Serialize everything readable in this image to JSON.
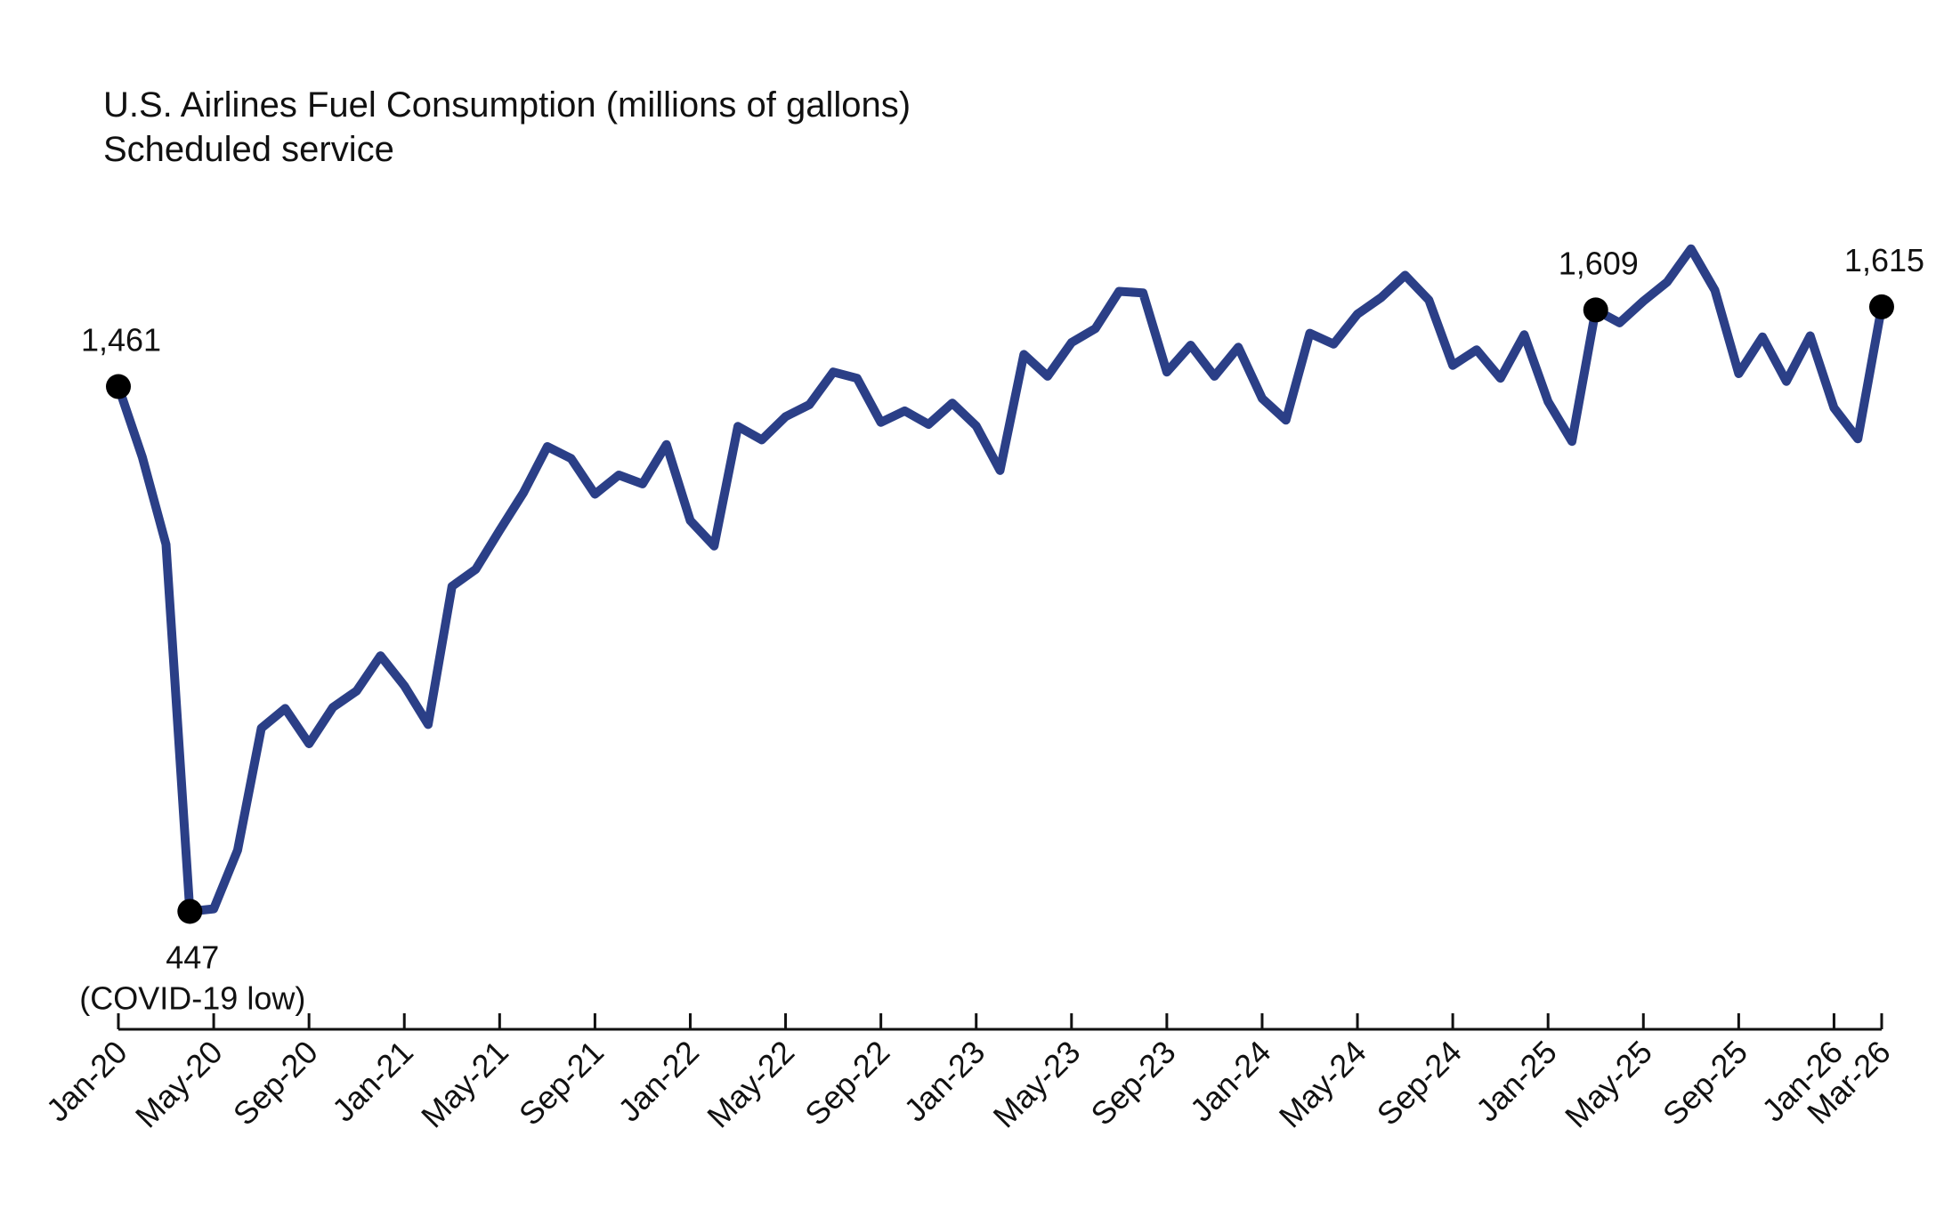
{
  "chart_data": {
    "type": "line",
    "title": "U.S. Airlines Fuel Consumption (millions of gallons)",
    "subtitle": "Scheduled service",
    "xlabel": "",
    "ylabel": "",
    "grid": false,
    "y_axis_visible": false,
    "ylim": [
      300,
      1950
    ],
    "line_color": "#2b3f87",
    "marker_color": "#000000",
    "x_ticks": [
      "Jan-20",
      "May-20",
      "Sep-20",
      "Jan-21",
      "May-21",
      "Sep-21",
      "Jan-22",
      "May-22",
      "Sep-22",
      "Jan-23",
      "May-23",
      "Sep-23",
      "Jan-24",
      "May-24",
      "Sep-24",
      "Jan-25",
      "May-25",
      "Sep-25",
      "Jan-26",
      "Mar-26"
    ],
    "x": [
      "Jan-20",
      "Feb-20",
      "Mar-20",
      "Apr-20",
      "May-20",
      "Jun-20",
      "Jul-20",
      "Aug-20",
      "Sep-20",
      "Oct-20",
      "Nov-20",
      "Dec-20",
      "Jan-21",
      "Feb-21",
      "Mar-21",
      "Apr-21",
      "May-21",
      "Jun-21",
      "Jul-21",
      "Aug-21",
      "Sep-21",
      "Oct-21",
      "Nov-21",
      "Dec-21",
      "Jan-22",
      "Feb-22",
      "Mar-22",
      "Apr-22",
      "May-22",
      "Jun-22",
      "Jul-22",
      "Aug-22",
      "Sep-22",
      "Oct-22",
      "Nov-22",
      "Dec-22",
      "Jan-23",
      "Feb-23",
      "Mar-23",
      "Apr-23",
      "May-23",
      "Jun-23",
      "Jul-23",
      "Aug-23",
      "Sep-23",
      "Oct-23",
      "Nov-23",
      "Dec-23",
      "Jan-24",
      "Feb-24",
      "Mar-24",
      "Apr-24",
      "May-24",
      "Jun-24",
      "Jul-24",
      "Aug-24",
      "Sep-24",
      "Oct-24",
      "Nov-24",
      "Dec-24",
      "Jan-25",
      "Feb-25",
      "Mar-25",
      "Apr-25",
      "May-25",
      "Jun-25",
      "Jul-25",
      "Aug-25",
      "Sep-25",
      "Oct-25",
      "Nov-25",
      "Dec-25",
      "Jan-26",
      "Feb-26",
      "Mar-26"
    ],
    "series": [
      {
        "values": [
          1461,
          1325,
          1156,
          447,
          452,
          565,
          801,
          839,
          771,
          841,
          873,
          941,
          883,
          808,
          1075,
          1108,
          1183,
          1256,
          1345,
          1322,
          1253,
          1290,
          1273,
          1349,
          1202,
          1153,
          1384,
          1358,
          1403,
          1426,
          1489,
          1477,
          1392,
          1414,
          1388,
          1429,
          1385,
          1299,
          1523,
          1481,
          1546,
          1573,
          1645,
          1642,
          1489,
          1541,
          1481,
          1537,
          1438,
          1396,
          1564,
          1543,
          1601,
          1633,
          1676,
          1628,
          1502,
          1532,
          1477,
          1561,
          1432,
          1355,
          1609,
          1584,
          1626,
          1663,
          1727,
          1647,
          1486,
          1557,
          1471,
          1559,
          1420,
          1360,
          1615
        ]
      }
    ],
    "annotations": [
      {
        "x": "Jan-20",
        "value": 1461,
        "text": "1,461"
      },
      {
        "x": "Apr-20",
        "value": 447,
        "text": "447",
        "text2": "(COVID-19 low)"
      },
      {
        "x": "Mar-25",
        "value": 1609,
        "text": "1,609"
      },
      {
        "x": "Mar-26",
        "value": 1615,
        "text": "1,615"
      }
    ]
  }
}
